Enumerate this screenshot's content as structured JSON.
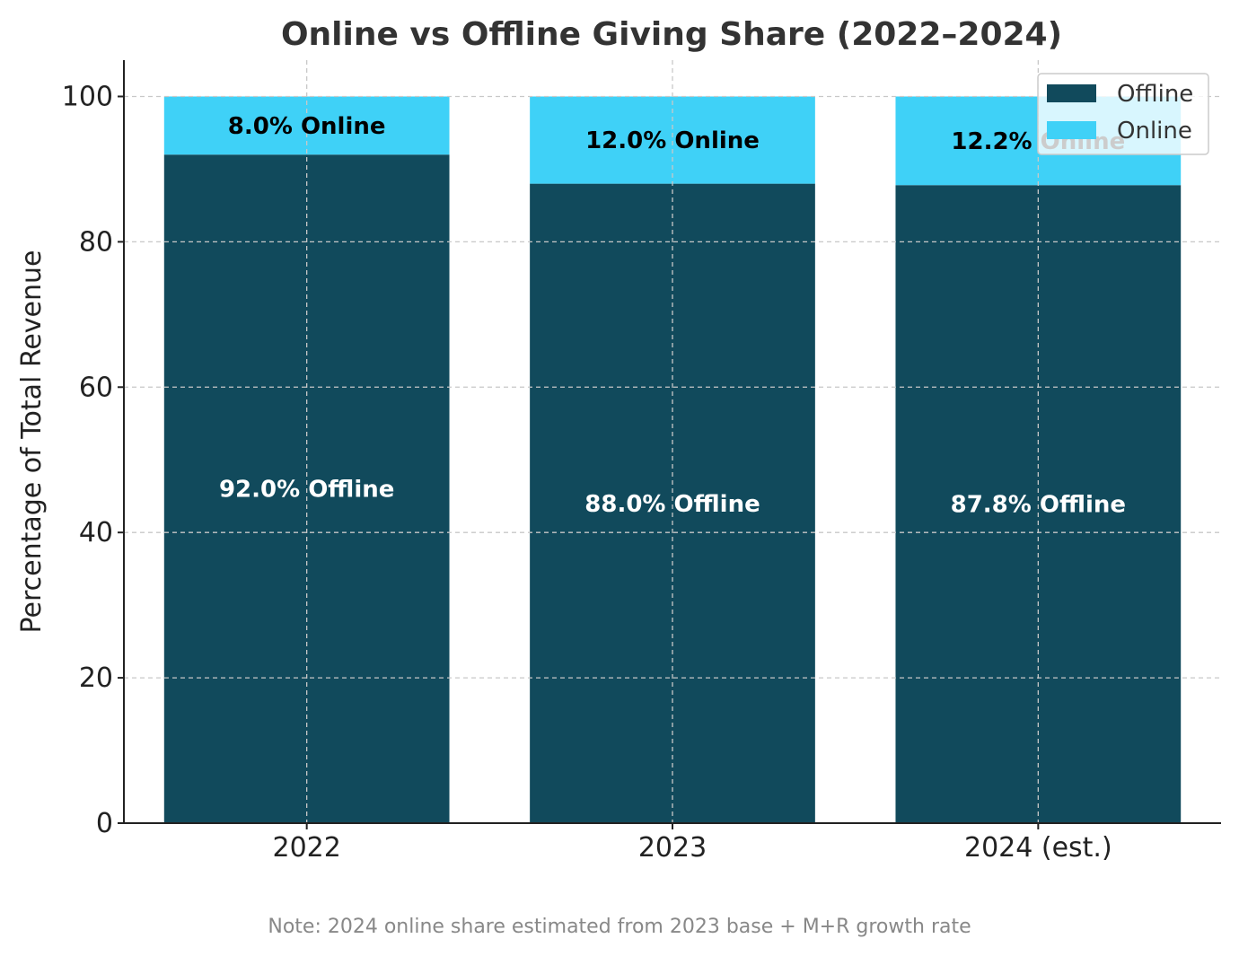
{
  "chart_data": {
    "type": "bar",
    "stacked": true,
    "title": "Online vs Offline Giving Share (2022–2024)",
    "xlabel": "",
    "ylabel": "Percentage of Total Revenue",
    "categories": [
      "2022",
      "2023",
      "2024 (est.)"
    ],
    "series": [
      {
        "name": "Offline",
        "values": [
          92.0,
          88.0,
          87.8
        ],
        "color": "#114a5c",
        "labels": [
          "92.0% Offline",
          "88.0% Offline",
          "87.8% Offline"
        ],
        "label_color": "#ffffff"
      },
      {
        "name": "Online",
        "values": [
          8.0,
          12.0,
          12.2
        ],
        "color": "#3fd1f7",
        "labels": [
          "8.0% Online",
          "12.0% Online",
          "12.2% Online"
        ],
        "label_color": "#000000"
      }
    ],
    "ylim": [
      0,
      105
    ],
    "yticks": [
      0,
      20,
      40,
      60,
      80,
      100
    ],
    "grid": true,
    "legend_position": "top-right",
    "note": "Note: 2024 online share estimated from 2023 base + M+R growth rate"
  }
}
